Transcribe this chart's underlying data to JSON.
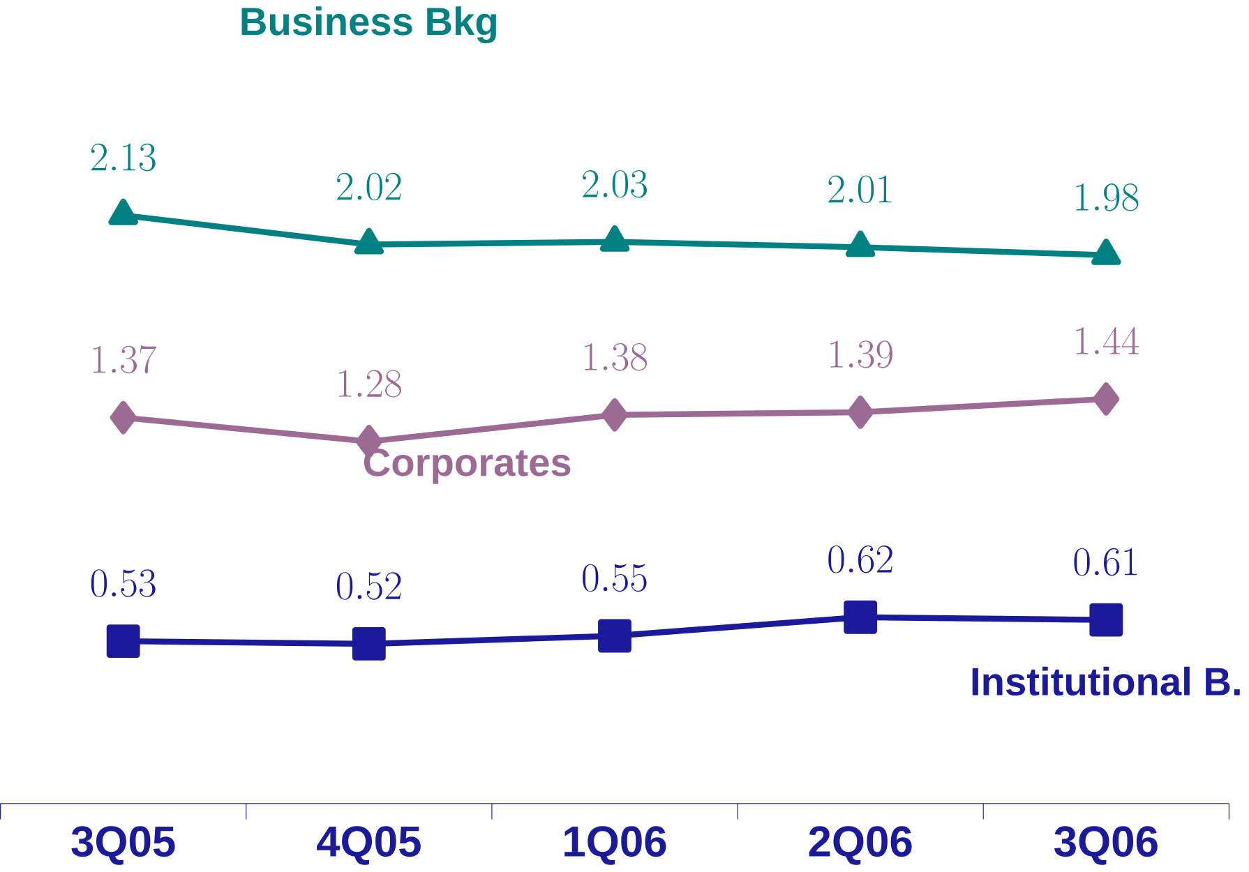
{
  "chart_data": {
    "type": "line",
    "categories": [
      "3Q05",
      "4Q05",
      "1Q06",
      "2Q06",
      "3Q06"
    ],
    "series": [
      {
        "name": "Business Bkg",
        "color": "#008080",
        "marker": "triangle",
        "values": [
          2.13,
          2.02,
          2.03,
          2.01,
          1.98
        ]
      },
      {
        "name": "Corporates",
        "color": "#9b6b95",
        "marker": "diamond",
        "values": [
          1.37,
          1.28,
          1.38,
          1.39,
          1.44
        ]
      },
      {
        "name": "Institutional B.",
        "color": "#1a1a9a",
        "marker": "square",
        "values": [
          0.53,
          0.52,
          0.55,
          0.62,
          0.61
        ]
      }
    ],
    "data_labels": true,
    "legend": false,
    "grid": false,
    "line_style": "solid"
  }
}
